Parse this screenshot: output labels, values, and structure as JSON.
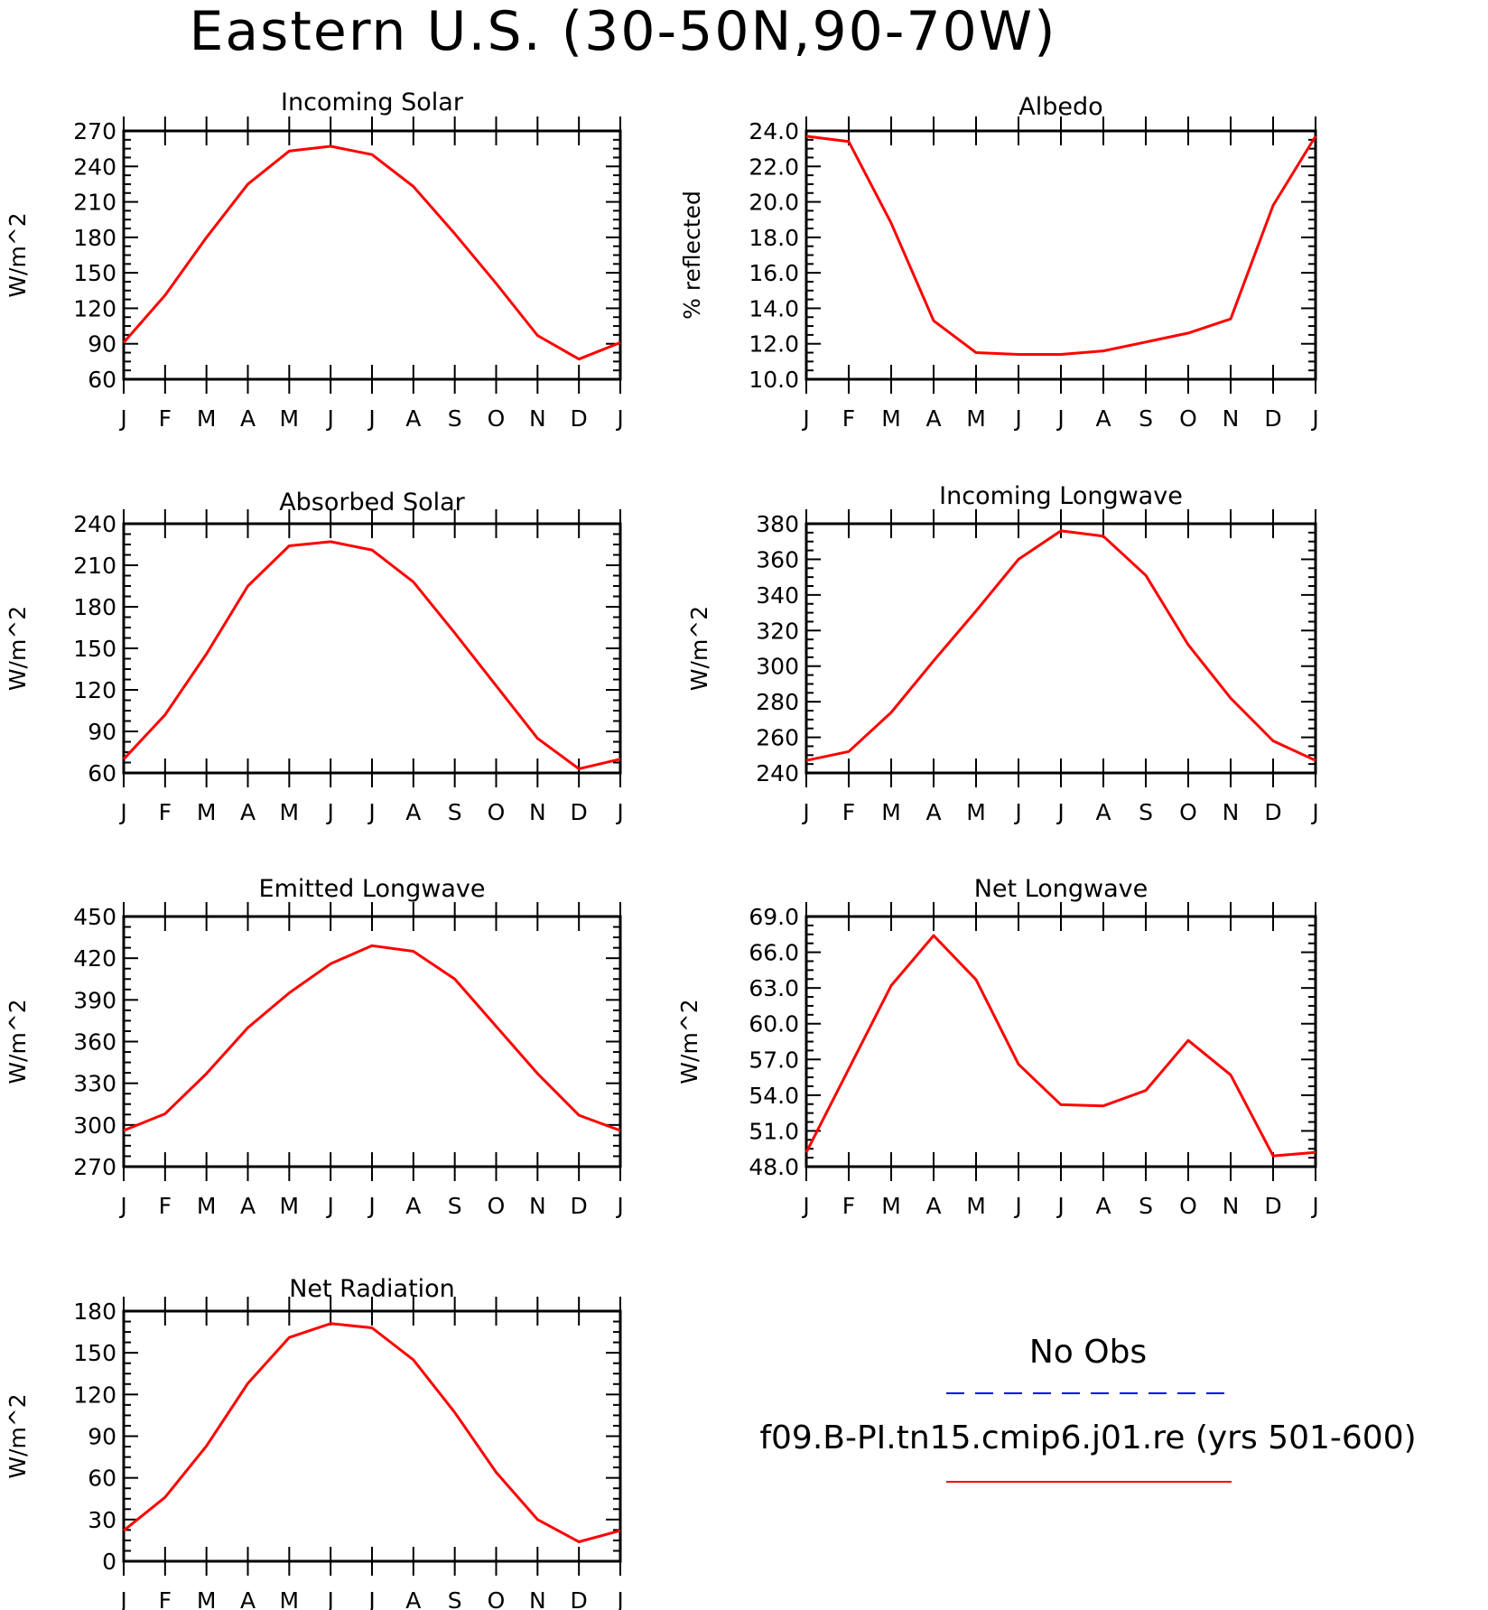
{
  "figure": {
    "title": "Eastern U.S. (30-50N,90-70W)"
  },
  "colors": {
    "model_line": "#ff0000",
    "obs_line": "#0000ff",
    "axis": "#000000"
  },
  "legend": {
    "obs_label": "No Obs",
    "model_label": "f09.B-PI.tn15.cmip6.j01.re (yrs 501-600)"
  },
  "chart_data": [
    {
      "type": "line",
      "title": "Incoming Solar",
      "ylabel": "W/m^2",
      "categories": [
        "J",
        "F",
        "M",
        "A",
        "M",
        "J",
        "J",
        "A",
        "S",
        "O",
        "N",
        "D",
        "J"
      ],
      "ylim": [
        60,
        270
      ],
      "yticks": [
        "60",
        "90",
        "120",
        "150",
        "180",
        "210",
        "240",
        "270"
      ],
      "series": [
        {
          "values": [
            91,
            131,
            180,
            225,
            253,
            257,
            250,
            223,
            183,
            141,
            97,
            77,
            91
          ]
        }
      ]
    },
    {
      "type": "line",
      "title": "Albedo",
      "ylabel": "% reflected",
      "categories": [
        "J",
        "F",
        "M",
        "A",
        "M",
        "J",
        "J",
        "A",
        "S",
        "O",
        "N",
        "D",
        "J"
      ],
      "ylim": [
        10.0,
        24.0
      ],
      "yticks": [
        "10.0",
        "12.0",
        "14.0",
        "16.0",
        "18.0",
        "20.0",
        "22.0",
        "24.0"
      ],
      "series": [
        {
          "values": [
            23.7,
            23.4,
            18.8,
            13.3,
            11.5,
            11.4,
            11.4,
            11.6,
            12.1,
            12.6,
            13.4,
            19.8,
            23.7
          ]
        }
      ]
    },
    {
      "type": "line",
      "title": "Absorbed Solar",
      "ylabel": "W/m^2",
      "categories": [
        "J",
        "F",
        "M",
        "A",
        "M",
        "J",
        "J",
        "A",
        "S",
        "O",
        "N",
        "D",
        "J"
      ],
      "ylim": [
        60,
        240
      ],
      "yticks": [
        "60",
        "90",
        "120",
        "150",
        "180",
        "210",
        "240"
      ],
      "series": [
        {
          "values": [
            70,
            102,
            146,
            195,
            224,
            227,
            221,
            198,
            161,
            123,
            85,
            63,
            70
          ]
        }
      ]
    },
    {
      "type": "line",
      "title": "Incoming Longwave",
      "ylabel": "W/m^2",
      "categories": [
        "J",
        "F",
        "M",
        "A",
        "M",
        "J",
        "J",
        "A",
        "S",
        "O",
        "N",
        "D",
        "J"
      ],
      "ylim": [
        240,
        380
      ],
      "yticks": [
        "240",
        "260",
        "280",
        "300",
        "320",
        "340",
        "360",
        "380"
      ],
      "series": [
        {
          "values": [
            247,
            252,
            274,
            303,
            331,
            360,
            376,
            373,
            351,
            312,
            282,
            258,
            247
          ]
        }
      ]
    },
    {
      "type": "line",
      "title": "Emitted Longwave",
      "ylabel": "W/m^2",
      "categories": [
        "J",
        "F",
        "M",
        "A",
        "M",
        "J",
        "J",
        "A",
        "S",
        "O",
        "N",
        "D",
        "J"
      ],
      "ylim": [
        270,
        450
      ],
      "yticks": [
        "270",
        "300",
        "330",
        "360",
        "390",
        "420",
        "450"
      ],
      "series": [
        {
          "values": [
            296,
            308,
            337,
            370,
            395,
            416,
            429,
            425,
            405,
            371,
            337,
            307,
            296
          ]
        }
      ]
    },
    {
      "type": "line",
      "title": "Net Longwave",
      "ylabel": "W/m^2",
      "categories": [
        "J",
        "F",
        "M",
        "A",
        "M",
        "J",
        "J",
        "A",
        "S",
        "O",
        "N",
        "D",
        "J"
      ],
      "ylim": [
        48.0,
        69.0
      ],
      "yticks": [
        "48.0",
        "51.0",
        "54.0",
        "57.0",
        "60.0",
        "63.0",
        "66.0",
        "69.0"
      ],
      "series": [
        {
          "values": [
            49.2,
            56.2,
            63.2,
            67.4,
            63.7,
            56.6,
            53.2,
            53.1,
            54.4,
            58.6,
            55.7,
            48.9,
            49.2
          ]
        }
      ]
    },
    {
      "type": "line",
      "title": "Net Radiation",
      "ylabel": "W/m^2",
      "categories": [
        "J",
        "F",
        "M",
        "A",
        "M",
        "J",
        "J",
        "A",
        "S",
        "O",
        "N",
        "D",
        "J"
      ],
      "ylim": [
        0,
        180
      ],
      "yticks": [
        "0",
        "30",
        "60",
        "90",
        "120",
        "150",
        "180"
      ],
      "series": [
        {
          "values": [
            22,
            46,
            83,
            128,
            161,
            171,
            168,
            145,
            107,
            64,
            30,
            14,
            22
          ]
        }
      ]
    }
  ]
}
